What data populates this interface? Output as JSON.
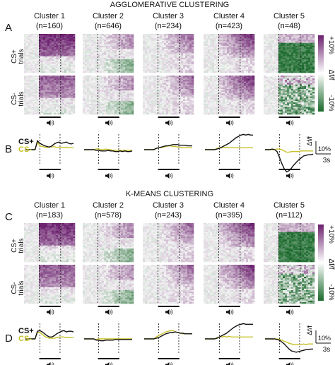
{
  "sections": [
    {
      "title": "AGGLOMERATIVE CLUSTERING",
      "heatmap_panel_label": "A",
      "trace_panel_label": "B",
      "clusters": [
        {
          "name": "Cluster 1",
          "n": "(n=160)"
        },
        {
          "name": "Cluster 2",
          "n": "(n=646)"
        },
        {
          "name": "Cluster 3",
          "n": "(n=234)"
        },
        {
          "name": "Cluster 4",
          "n": "(n=423)"
        },
        {
          "name": "Cluster 5",
          "n": "(n=48)"
        }
      ]
    },
    {
      "title": "K-MEANS CLUSTERING",
      "heatmap_panel_label": "C",
      "trace_panel_label": "D",
      "clusters": [
        {
          "name": "Cluster 1",
          "n": "(n=183)"
        },
        {
          "name": "Cluster 2",
          "n": "(n=578)"
        },
        {
          "name": "Cluster 3",
          "n": "(n=243)"
        },
        {
          "name": "Cluster 4",
          "n": "(n=395)"
        },
        {
          "name": "Cluster 5",
          "n": "(n=112)"
        }
      ]
    }
  ],
  "row_labels": {
    "cs_plus": [
      "CS+",
      "trials"
    ],
    "cs_minus": [
      "CS-",
      "trials"
    ]
  },
  "colorbar": {
    "top": "+10%",
    "mid": "Δf/f",
    "bottom": "-10%",
    "colors": [
      "#6b1f6e",
      "#ffffff",
      "#1b6a2d"
    ]
  },
  "legend": {
    "cs_plus": "CS+",
    "cs_minus": "CS-",
    "cs_plus_color": "#111111",
    "cs_minus_color": "#c8c12a"
  },
  "scale_bar": {
    "y_label": "Δf/f",
    "y_value": "10%",
    "x_label": "3s"
  },
  "speaker_icon": "speaker-icon",
  "chart_data": [
    {
      "type": "line",
      "section": "AGGLOMERATIVE CLUSTERING",
      "x": [
        0,
        1,
        2,
        3,
        4,
        5,
        6,
        7,
        8,
        9,
        10,
        11,
        12,
        13,
        14,
        15,
        16,
        17,
        18,
        19,
        20
      ],
      "clusters": [
        {
          "name": "Cluster 1",
          "series": [
            {
              "name": "CS+",
              "values": [
                0,
                0,
                0,
                0,
                0,
                1.4,
                1.0,
                0.8,
                0.6,
                0.5,
                0.4,
                0.6,
                0.9,
                1.1,
                1.2,
                1.0,
                1.1,
                1.2,
                1.0,
                0.9,
                1.0
              ]
            },
            {
              "name": "CS-",
              "values": [
                0,
                0,
                0,
                0,
                0,
                1.2,
                0.6,
                0.5,
                0.4,
                0.3,
                0.5,
                0.4,
                0.5,
                0.3,
                0.4,
                0.4,
                0.3,
                0.4,
                0.3,
                0.3,
                0.3
              ]
            }
          ]
        },
        {
          "name": "Cluster 2",
          "series": [
            {
              "name": "CS+",
              "values": [
                0,
                0,
                0,
                0,
                0,
                -0.1,
                -0.1,
                -0.2,
                -0.2,
                -0.2,
                -0.1,
                -0.2,
                -0.2,
                -0.3,
                -0.3,
                -0.2,
                -0.3,
                -0.2,
                -0.3,
                -0.3,
                -0.2
              ]
            },
            {
              "name": "CS-",
              "values": [
                0,
                0,
                0,
                0,
                0,
                0.1,
                0.1,
                0.0,
                0.0,
                0.1,
                0.0,
                0.0,
                -0.1,
                -0.1,
                -0.1,
                -0.1,
                -0.1,
                -0.1,
                -0.1,
                -0.1,
                -0.1
              ]
            }
          ]
        },
        {
          "name": "Cluster 3",
          "series": [
            {
              "name": "CS+",
              "values": [
                0,
                0,
                0,
                0,
                0,
                0.2,
                0.3,
                0.4,
                0.5,
                0.6,
                0.6,
                0.7,
                0.8,
                0.8,
                0.8,
                0.7,
                0.7,
                0.7,
                0.6,
                0.6,
                0.6
              ]
            },
            {
              "name": "CS-",
              "values": [
                0,
                0,
                0,
                0,
                0,
                0.2,
                0.3,
                0.3,
                0.4,
                0.5,
                0.6,
                0.6,
                0.5,
                0.5,
                0.4,
                0.4,
                0.3,
                0.3,
                0.3,
                0.3,
                0.3
              ]
            }
          ]
        },
        {
          "name": "Cluster 4",
          "series": [
            {
              "name": "CS+",
              "values": [
                0,
                0,
                0,
                0,
                0,
                0.1,
                0.2,
                0.4,
                0.6,
                0.8,
                1.0,
                1.3,
                1.6,
                1.9,
                2.1,
                2.3,
                2.4,
                2.3,
                2.4,
                2.3,
                2.3
              ]
            },
            {
              "name": "CS-",
              "values": [
                0,
                0,
                0,
                0,
                0,
                0.2,
                0.3,
                0.3,
                0.3,
                0.4,
                0.3,
                0.3,
                0.3,
                0.3,
                0.3,
                0.3,
                0.3,
                0.3,
                0.3,
                0.3,
                0.3
              ]
            }
          ]
        },
        {
          "name": "Cluster 5",
          "series": [
            {
              "name": "CS+",
              "values": [
                0,
                0,
                0,
                0.1,
                0,
                -0.3,
                -1.2,
                -2.2,
                -3.0,
                -3.5,
                -3.3,
                -2.9,
                -2.4,
                -2.0,
                -1.6,
                -1.3,
                -1.0,
                -0.9,
                -0.8,
                -0.8,
                -0.7
              ]
            },
            {
              "name": "CS-",
              "values": [
                0,
                0,
                0,
                0,
                0,
                0.1,
                0.1,
                0.0,
                -0.2,
                -0.4,
                -0.4,
                -0.3,
                -0.3,
                -0.3,
                -0.3,
                -0.2,
                -0.2,
                -0.2,
                -0.2,
                -0.2,
                -0.2
              ]
            }
          ]
        }
      ]
    },
    {
      "type": "line",
      "section": "K-MEANS CLUSTERING",
      "x": [
        0,
        1,
        2,
        3,
        4,
        5,
        6,
        7,
        8,
        9,
        10,
        11,
        12,
        13,
        14,
        15,
        16,
        17,
        18,
        19,
        20
      ],
      "clusters": [
        {
          "name": "Cluster 1",
          "series": [
            {
              "name": "CS+",
              "values": [
                0,
                0,
                0,
                0,
                0,
                1.2,
                1.3,
                1.1,
                0.8,
                0.5,
                0.3,
                0.3,
                0.5,
                0.8,
                1.0,
                1.2,
                1.3,
                1.1,
                1.2,
                1.2,
                1.1
              ]
            },
            {
              "name": "CS-",
              "values": [
                0,
                0,
                0,
                0,
                0,
                1.0,
                1.0,
                0.7,
                0.4,
                0.2,
                0.1,
                0.1,
                0.1,
                0.2,
                0.3,
                0.3,
                0.3,
                0.2,
                0.2,
                0.2,
                0.2
              ]
            }
          ]
        },
        {
          "name": "Cluster 2",
          "series": [
            {
              "name": "CS+",
              "values": [
                0,
                0,
                0,
                0,
                0,
                -0.2,
                -0.2,
                -0.3,
                -0.3,
                -0.2,
                -0.2,
                -0.2,
                -0.2,
                -0.1,
                -0.1,
                -0.1,
                -0.1,
                -0.1,
                -0.1,
                -0.1,
                -0.1
              ]
            },
            {
              "name": "CS-",
              "values": [
                0,
                0,
                0,
                0,
                0,
                -0.1,
                0.0,
                0.0,
                0.0,
                0.0,
                0.0,
                0.0,
                0.0,
                0.0,
                0.0,
                0.0,
                0.0,
                0.0,
                0.0,
                0.0,
                0.0
              ]
            }
          ]
        },
        {
          "name": "Cluster 3",
          "series": [
            {
              "name": "CS+",
              "values": [
                0,
                0,
                0,
                0,
                0,
                0.1,
                0.2,
                0.4,
                0.6,
                0.8,
                0.9,
                1.0,
                1.0,
                1.1,
                1.0,
                0.9,
                0.9,
                0.8,
                0.8,
                0.8,
                0.8
              ]
            },
            {
              "name": "CS-",
              "values": [
                0,
                0,
                0,
                0,
                0,
                0.3,
                0.5,
                0.7,
                0.9,
                1.1,
                1.2,
                1.3,
                1.3,
                1.1,
                1.0,
                0.9,
                0.8,
                0.8,
                0.8,
                0.8,
                0.8
              ]
            }
          ]
        },
        {
          "name": "Cluster 4",
          "series": [
            {
              "name": "CS+",
              "values": [
                0,
                0,
                0,
                0,
                0,
                0.1,
                0.3,
                0.5,
                0.7,
                0.9,
                1.2,
                1.5,
                1.8,
                2.0,
                2.2,
                2.3,
                2.4,
                2.3,
                2.3,
                2.3,
                2.3
              ]
            },
            {
              "name": "CS-",
              "values": [
                0,
                0,
                0,
                0,
                0,
                0.2,
                0.3,
                0.3,
                0.4,
                0.3,
                0.4,
                0.3,
                0.3,
                0.3,
                0.3,
                0.3,
                0.3,
                0.3,
                0.3,
                0.3,
                0.3
              ]
            }
          ]
        },
        {
          "name": "Cluster 5",
          "series": [
            {
              "name": "CS+",
              "values": [
                0,
                0,
                0,
                0,
                0,
                -0.1,
                -0.2,
                -0.5,
                -0.8,
                -1.2,
                -1.6,
                -1.9,
                -2.0,
                -2.1,
                -2.0,
                -1.9,
                -1.8,
                -1.7,
                -1.7,
                -1.6,
                -1.6
              ]
            },
            {
              "name": "CS-",
              "values": [
                0,
                0,
                0,
                0,
                0,
                0.0,
                -0.1,
                -0.2,
                -0.4,
                -0.5,
                -0.7,
                -0.8,
                -0.9,
                -0.9,
                -0.9,
                -0.9,
                -0.8,
                -0.9,
                -0.8,
                -0.8,
                -0.8
              ]
            }
          ]
        }
      ]
    }
  ]
}
